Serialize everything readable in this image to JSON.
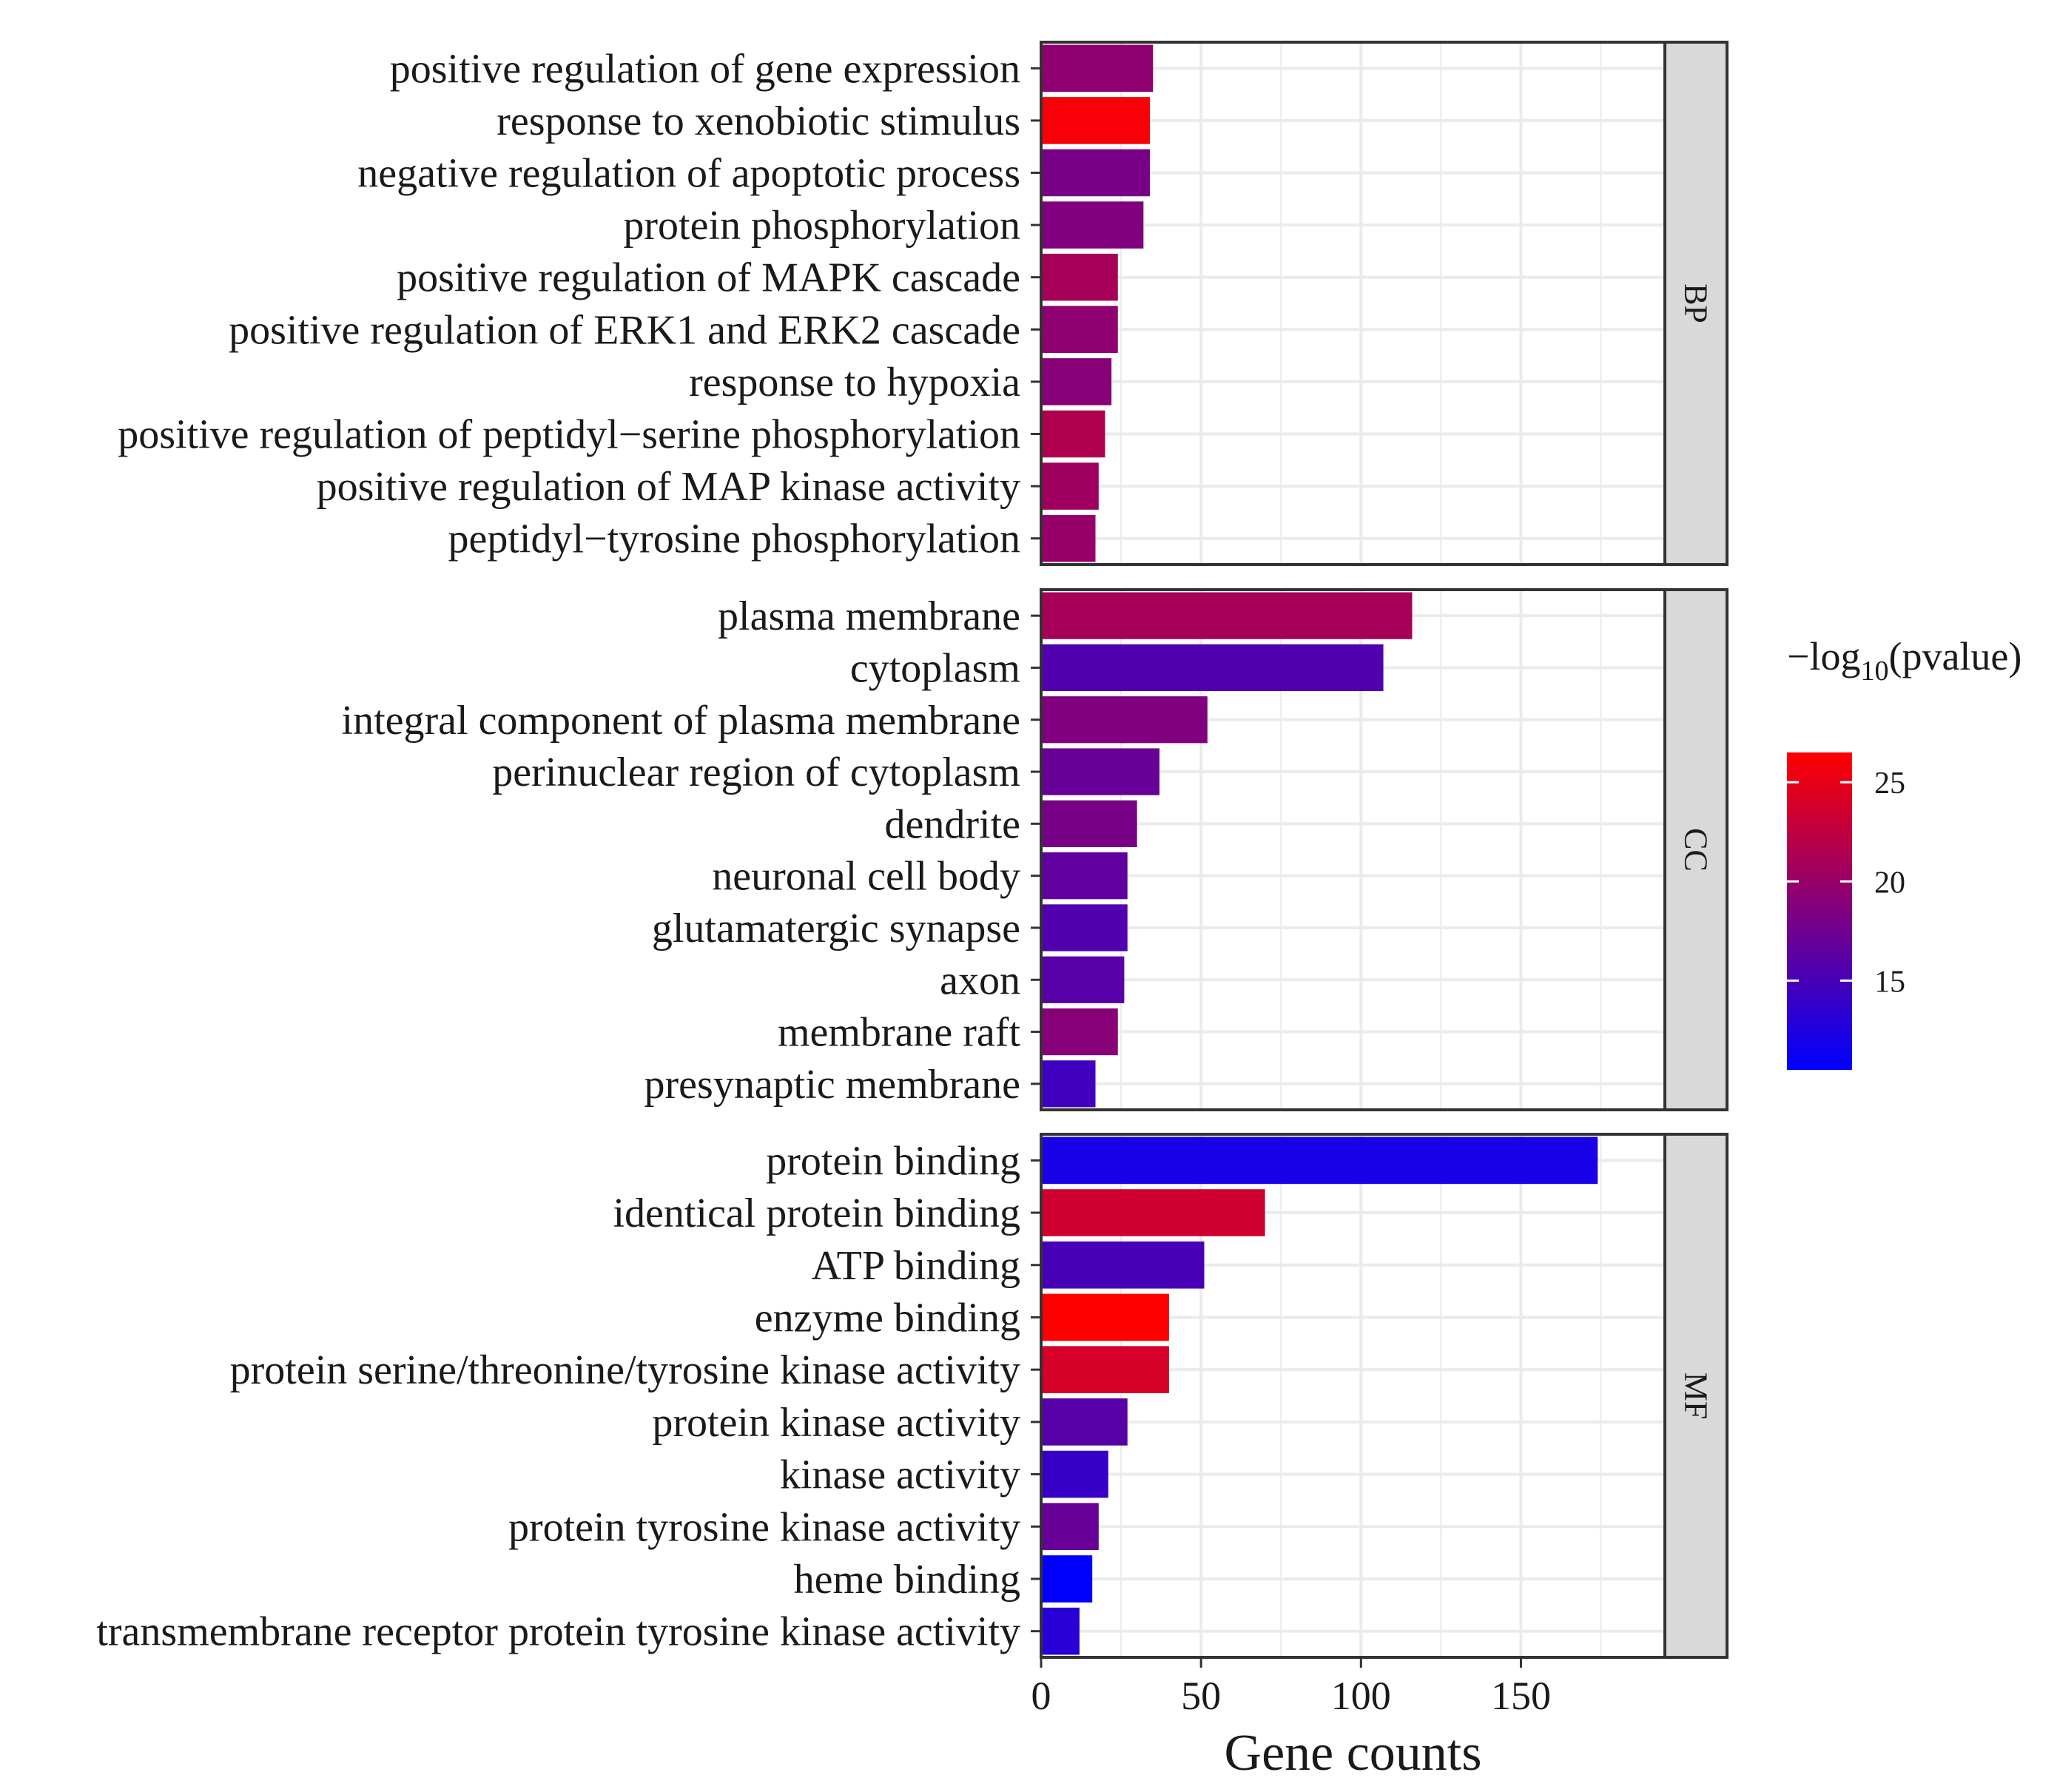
{
  "chart_data": {
    "type": "bar",
    "orientation": "horizontal",
    "xlabel": "Gene counts",
    "ylabel": "",
    "xlim": [
      0,
      195
    ],
    "xticks": [
      0,
      50,
      100,
      150
    ],
    "grid": true,
    "legend": {
      "title_prefix": "−log",
      "title_sub": "10",
      "title_suffix": "(pvalue)",
      "placement": "right",
      "min": 10.5,
      "max": 26.5,
      "ticks": [
        15,
        20,
        25
      ],
      "low_color": "#0000ff",
      "high_color": "#ff0000"
    },
    "facets": [
      {
        "name": "BP",
        "categories": [
          "positive regulation of gene expression",
          "response to xenobiotic stimulus",
          "negative regulation of apoptotic process",
          "protein phosphorylation",
          "positive regulation of MAPK cascade",
          "positive regulation of ERK1 and ERK2 cascade",
          "response to hypoxia",
          "positive regulation of peptidyl−serine phosphorylation",
          "positive regulation of MAP kinase activity",
          "peptidyl−tyrosine phosphorylation"
        ],
        "values": [
          35,
          34,
          34,
          32,
          24,
          24,
          22,
          20,
          18,
          17
        ],
        "neglog10_pvalue": [
          19.5,
          26.0,
          18.0,
          18.5,
          21.0,
          19.5,
          19.0,
          21.5,
          20.5,
          20.0
        ]
      },
      {
        "name": "CC",
        "categories": [
          "plasma membrane",
          "cytoplasm",
          "integral component of plasma membrane",
          "perinuclear region of cytoplasm",
          "dendrite",
          "neuronal cell body",
          "glutamatergic synapse",
          "axon",
          "membrane raft",
          "presynaptic membrane"
        ],
        "values": [
          116,
          107,
          52,
          37,
          30,
          27,
          27,
          26,
          24,
          17
        ],
        "neglog10_pvalue": [
          21.0,
          15.5,
          18.5,
          17.0,
          18.0,
          16.5,
          15.5,
          16.0,
          19.0,
          14.5
        ]
      },
      {
        "name": "MF",
        "categories": [
          "protein binding",
          "identical protein binding",
          "ATP binding",
          "enzyme binding",
          "protein serine/threonine/tyrosine kinase activity",
          "protein kinase activity",
          "kinase activity",
          "protein tyrosine kinase activity",
          "heme binding",
          "transmembrane receptor protein tyrosine kinase activity"
        ],
        "values": [
          174,
          70,
          51,
          40,
          40,
          27,
          21,
          18,
          16,
          12
        ],
        "neglog10_pvalue": [
          12.0,
          23.5,
          15.0,
          26.5,
          24.0,
          16.0,
          14.0,
          17.0,
          10.5,
          13.0
        ]
      }
    ]
  }
}
